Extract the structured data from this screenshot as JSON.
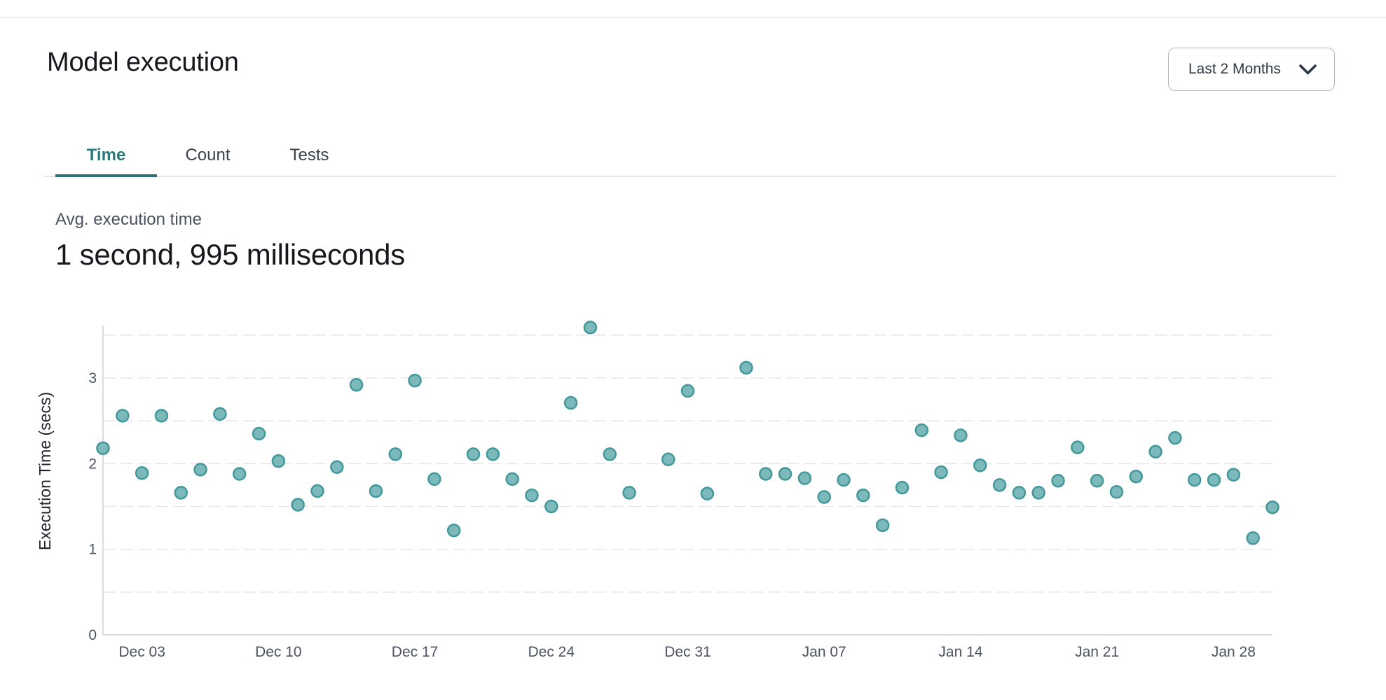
{
  "header": {
    "title": "Model execution",
    "date_range_label": "Last 2 Months",
    "date_range_icon": "chevron-down-icon"
  },
  "tabs": [
    {
      "label": "Time",
      "active": true
    },
    {
      "label": "Count",
      "active": false
    },
    {
      "label": "Tests",
      "active": false
    }
  ],
  "stat": {
    "label": "Avg. execution time",
    "value": "1 second, 995 milliseconds"
  },
  "chart_data": {
    "type": "scatter",
    "title": "",
    "xlabel": "",
    "ylabel": "Execution Time (secs)",
    "ylim": [
      0,
      3.7
    ],
    "y_ticks": [
      0,
      1,
      2,
      3
    ],
    "grid": "horizontal dashed lines every 0.5, no vertical grid",
    "legend": "none",
    "x_ticks": [
      "Dec 03",
      "Dec 10",
      "Dec 17",
      "Dec 24",
      "Dec 31",
      "Jan 07",
      "Jan 14",
      "Jan 21",
      "Jan 28"
    ],
    "x_range": [
      "Dec 01",
      "Jan 30"
    ],
    "points": [
      {
        "date": "Dec 01",
        "value": 2.18
      },
      {
        "date": "Dec 02",
        "value": 2.56
      },
      {
        "date": "Dec 03",
        "value": 1.89
      },
      {
        "date": "Dec 04",
        "value": 2.56
      },
      {
        "date": "Dec 05",
        "value": 1.66
      },
      {
        "date": "Dec 06",
        "value": 1.93
      },
      {
        "date": "Dec 07",
        "value": 2.58
      },
      {
        "date": "Dec 08",
        "value": 1.88
      },
      {
        "date": "Dec 09",
        "value": 2.35
      },
      {
        "date": "Dec 10",
        "value": 2.03
      },
      {
        "date": "Dec 11",
        "value": 1.52
      },
      {
        "date": "Dec 12",
        "value": 1.68
      },
      {
        "date": "Dec 13",
        "value": 1.96
      },
      {
        "date": "Dec 14",
        "value": 2.92
      },
      {
        "date": "Dec 15",
        "value": 1.68
      },
      {
        "date": "Dec 16",
        "value": 2.11
      },
      {
        "date": "Dec 17",
        "value": 2.97
      },
      {
        "date": "Dec 18",
        "value": 1.82
      },
      {
        "date": "Dec 19",
        "value": 1.22
      },
      {
        "date": "Dec 20",
        "value": 2.11
      },
      {
        "date": "Dec 21",
        "value": 2.11
      },
      {
        "date": "Dec 22",
        "value": 1.82
      },
      {
        "date": "Dec 23",
        "value": 1.63
      },
      {
        "date": "Dec 24",
        "value": 1.5
      },
      {
        "date": "Dec 25",
        "value": 2.71
      },
      {
        "date": "Dec 26",
        "value": 3.59
      },
      {
        "date": "Dec 27",
        "value": 2.11
      },
      {
        "date": "Dec 28",
        "value": 1.66
      },
      {
        "date": "Dec 30",
        "value": 2.05
      },
      {
        "date": "Dec 31",
        "value": 2.85
      },
      {
        "date": "Jan 01",
        "value": 1.65
      },
      {
        "date": "Jan 03",
        "value": 3.12
      },
      {
        "date": "Jan 04",
        "value": 1.88
      },
      {
        "date": "Jan 05",
        "value": 1.88
      },
      {
        "date": "Jan 06",
        "value": 1.83
      },
      {
        "date": "Jan 07",
        "value": 1.61
      },
      {
        "date": "Jan 08",
        "value": 1.81
      },
      {
        "date": "Jan 09",
        "value": 1.63
      },
      {
        "date": "Jan 10",
        "value": 1.28
      },
      {
        "date": "Jan 11",
        "value": 1.72
      },
      {
        "date": "Jan 12",
        "value": 2.39
      },
      {
        "date": "Jan 13",
        "value": 1.9
      },
      {
        "date": "Jan 14",
        "value": 2.33
      },
      {
        "date": "Jan 15",
        "value": 1.98
      },
      {
        "date": "Jan 16",
        "value": 1.75
      },
      {
        "date": "Jan 17",
        "value": 1.66
      },
      {
        "date": "Jan 18",
        "value": 1.66
      },
      {
        "date": "Jan 19",
        "value": 1.8
      },
      {
        "date": "Jan 20",
        "value": 2.19
      },
      {
        "date": "Jan 21",
        "value": 1.8
      },
      {
        "date": "Jan 22",
        "value": 1.67
      },
      {
        "date": "Jan 23",
        "value": 1.85
      },
      {
        "date": "Jan 24",
        "value": 2.14
      },
      {
        "date": "Jan 25",
        "value": 2.3
      },
      {
        "date": "Jan 26",
        "value": 1.81
      },
      {
        "date": "Jan 27",
        "value": 1.81
      },
      {
        "date": "Jan 28",
        "value": 1.87
      },
      {
        "date": "Jan 29",
        "value": 1.13
      },
      {
        "date": "Jan 30",
        "value": 1.49
      }
    ],
    "colors": {
      "marker_fill": "#7cb9ba",
      "marker_stroke": "#43989b",
      "grid_line": "#e6e7eb",
      "axis_line": "#d9dbe0",
      "tick_text": "#4b5262",
      "axis_title_text": "#20242c"
    }
  },
  "colors": {
    "accent_teal": "#2c797c",
    "tab_underline": "#2a7275",
    "inactive_tab_text": "#3a414e",
    "title_text": "#14171c",
    "stat_label_text": "#49515f",
    "stat_value_text": "#15181d",
    "dropdown_border": "#b2b8c2",
    "divider": "#e4e5e8"
  }
}
